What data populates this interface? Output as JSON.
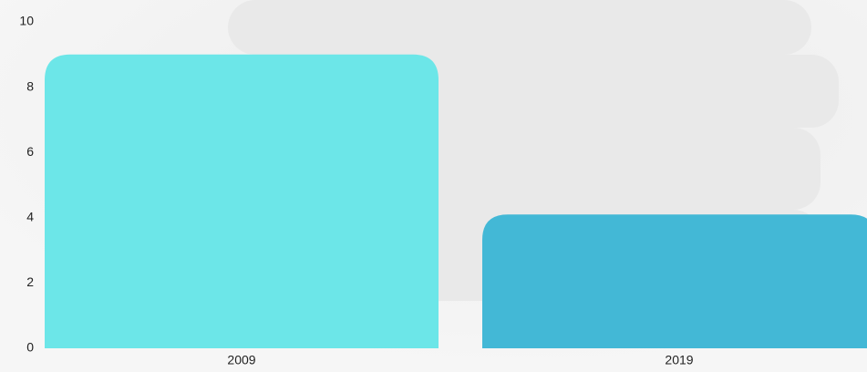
{
  "chart_data": {
    "type": "bar",
    "categories": [
      "2009",
      "2019"
    ],
    "values": [
      9,
      4.1
    ],
    "colors": [
      "#6ce6e8",
      "#43b8d6"
    ],
    "ylim": [
      0,
      10
    ],
    "yticks": [
      0,
      2,
      4,
      6,
      8,
      10
    ]
  }
}
